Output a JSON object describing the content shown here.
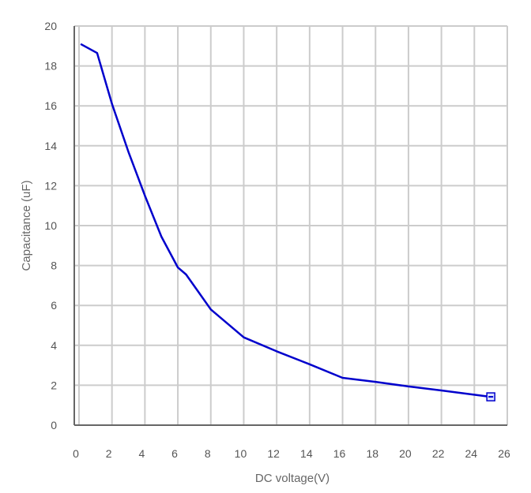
{
  "chart_data": {
    "type": "line",
    "title": "",
    "xlabel": "DC voltage(V)",
    "ylabel": "Capacitance (uF)",
    "xlim": [
      0,
      26
    ],
    "ylim": [
      0,
      20
    ],
    "xticks": [
      "0",
      "2",
      "4",
      "6",
      "8",
      "10",
      "12",
      "14",
      "16",
      "18",
      "20",
      "22",
      "24",
      "26"
    ],
    "yticks": [
      "0",
      "2",
      "4",
      "6",
      "8",
      "10",
      "12",
      "14",
      "16",
      "18",
      "20"
    ],
    "grid": true,
    "line_color": "#0000cc",
    "grid_color": "#cccccc",
    "series": [
      {
        "points": [
          [
            0.1,
            19.1
          ],
          [
            1.1,
            18.65
          ],
          [
            2,
            16.1
          ],
          [
            3,
            13.7
          ],
          [
            4,
            11.5
          ],
          [
            5,
            9.45
          ],
          [
            6,
            7.9
          ],
          [
            6.5,
            7.55
          ],
          [
            8,
            5.8
          ],
          [
            10,
            4.4
          ],
          [
            12,
            3.7
          ],
          [
            14,
            3.05
          ],
          [
            16,
            2.37
          ],
          [
            18,
            2.17
          ],
          [
            20,
            1.94
          ],
          [
            22,
            1.74
          ],
          [
            25,
            1.42
          ]
        ],
        "end_marker": "square"
      }
    ]
  }
}
